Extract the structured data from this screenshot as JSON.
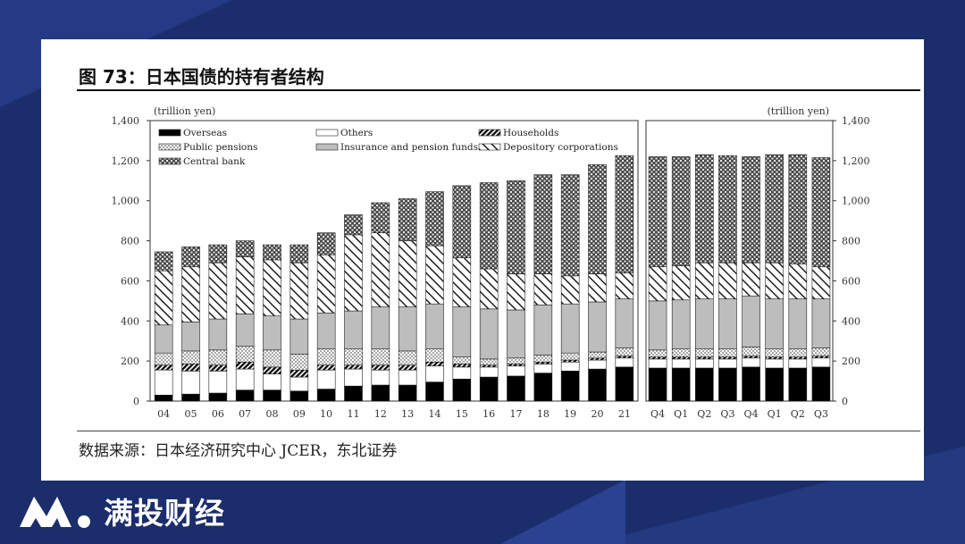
{
  "figure": {
    "title": "图 73：日本国债的持有者结构",
    "source": "数据来源：日本经济研究中心 JCER，东北证券"
  },
  "brand": {
    "name": "满投财经",
    "logo_icon": "m-logo-icon"
  },
  "colors": {
    "background": "#1b2d6b",
    "panel": "#ffffff",
    "bar_outline": "#222222"
  },
  "chart_data": {
    "type": "bar",
    "stacked": true,
    "unit": "(trillion yen)",
    "ylim": [
      0,
      1400
    ],
    "yticks": [
      "0",
      "200",
      "400",
      "600",
      "800",
      "1,000",
      "1,200",
      "1,400"
    ],
    "legend": [
      "Overseas",
      "Others",
      "Households",
      "Public pensions",
      "Insurance and pension funds",
      "Depository corporations",
      "Central bank"
    ],
    "series_order": [
      "Overseas",
      "Others",
      "Households",
      "Public pensions",
      "Insurance and pension funds",
      "Depository corporations",
      "Central bank"
    ],
    "panels": [
      {
        "categories": [
          "04",
          "05",
          "06",
          "07",
          "08",
          "09",
          "10",
          "11",
          "12",
          "13",
          "14",
          "15",
          "16",
          "17",
          "18",
          "19",
          "20",
          "21"
        ],
        "series": [
          {
            "name": "Overseas",
            "values": [
              30,
              35,
              40,
              55,
              55,
              50,
              60,
              75,
              80,
              80,
              95,
              110,
              120,
              125,
              140,
              150,
              160,
              170
            ]
          },
          {
            "name": "Others",
            "values": [
              125,
              115,
              110,
              105,
              80,
              70,
              95,
              85,
              75,
              75,
              80,
              60,
              50,
              50,
              45,
              45,
              45,
              45
            ]
          },
          {
            "name": "Households",
            "values": [
              25,
              35,
              30,
              35,
              35,
              35,
              25,
              20,
              25,
              25,
              20,
              15,
              10,
              10,
              10,
              10,
              10,
              10
            ]
          },
          {
            "name": "Public pensions",
            "values": [
              60,
              65,
              75,
              80,
              85,
              80,
              80,
              80,
              80,
              70,
              65,
              35,
              30,
              30,
              35,
              35,
              30,
              40
            ]
          },
          {
            "name": "Insurance and pension funds",
            "values": [
              140,
              145,
              155,
              160,
              170,
              175,
              180,
              190,
              210,
              220,
              225,
              250,
              250,
              240,
              250,
              245,
              250,
              245
            ]
          },
          {
            "name": "Depository corporations",
            "values": [
              270,
              275,
              280,
              285,
              280,
              280,
              290,
              380,
              370,
              330,
              290,
              245,
              200,
              180,
              155,
              140,
              140,
              130
            ]
          },
          {
            "name": "Central bank",
            "values": [
              95,
              100,
              90,
              80,
              75,
              90,
              110,
              100,
              150,
              210,
              270,
              360,
              430,
              465,
              495,
              505,
              545,
              585
            ]
          }
        ]
      },
      {
        "categories": [
          "Q4",
          "Q1",
          "Q2",
          "Q3",
          "Q4",
          "Q1",
          "Q2",
          "Q3"
        ],
        "series": [
          {
            "name": "Overseas",
            "values": [
              165,
              165,
              165,
              165,
              170,
              165,
              165,
              170
            ]
          },
          {
            "name": "Others",
            "values": [
              45,
              45,
              45,
              45,
              45,
              45,
              45,
              45
            ]
          },
          {
            "name": "Households",
            "values": [
              10,
              10,
              10,
              10,
              10,
              10,
              10,
              10
            ]
          },
          {
            "name": "Public pensions",
            "values": [
              35,
              40,
              40,
              40,
              45,
              40,
              40,
              40
            ]
          },
          {
            "name": "Insurance and pension funds",
            "values": [
              245,
              245,
              250,
              250,
              255,
              250,
              250,
              245
            ]
          },
          {
            "name": "Depository corporations",
            "values": [
              170,
              170,
              180,
              180,
              165,
              180,
              175,
              160
            ]
          },
          {
            "name": "Central bank",
            "values": [
              550,
              545,
              540,
              535,
              530,
              540,
              545,
              545
            ]
          }
        ]
      }
    ]
  }
}
